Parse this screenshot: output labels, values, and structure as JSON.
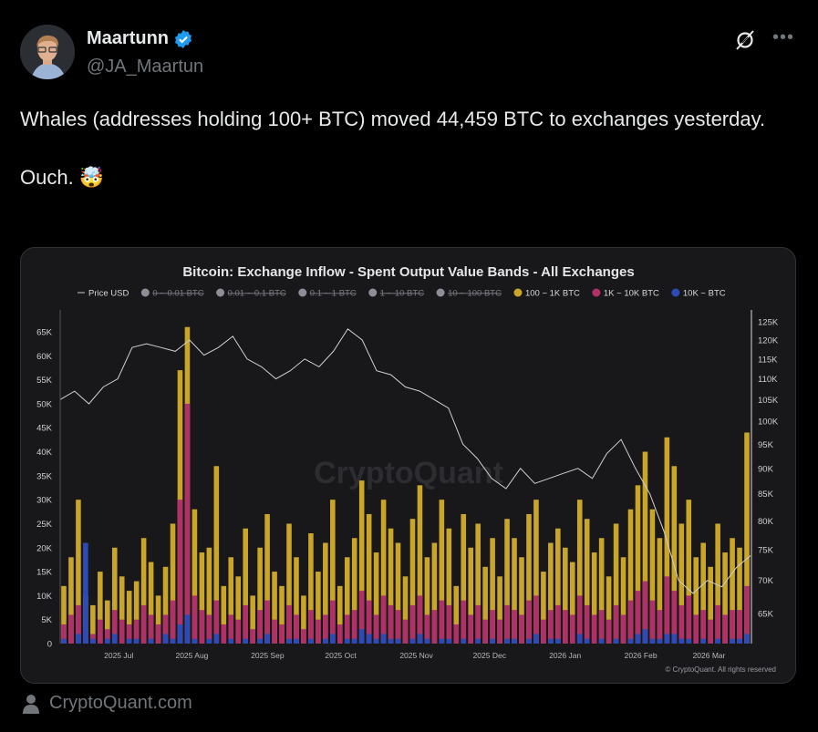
{
  "author": {
    "name": "Maartunn",
    "handle": "@JA_Maartun",
    "verified": true
  },
  "tweet": {
    "line1": "Whales (addresses holding 100+ BTC) moved 44,459 BTC to exchanges yesterday.",
    "line2": "Ouch. 🤯"
  },
  "actions": {
    "grok_icon": "grok-icon",
    "more_icon": "more-icon"
  },
  "source": {
    "label": "CryptoQuant.com"
  },
  "colors": {
    "yellow": "#c9a52a",
    "pink": "#b03068",
    "blue": "#2c4bb8",
    "price": "#d0d0d0",
    "disabled": "#8e8e98"
  },
  "chart_data": {
    "type": "bar",
    "title": "Bitcoin: Exchange Inflow - Spent Output Value Bands - All Exchanges",
    "watermark": "CryptoQuant",
    "copyright": "© CryptoQuant. All rights reserved",
    "legend": [
      {
        "label": "Price USD",
        "kind": "line",
        "disabled": false
      },
      {
        "label": "0 ~ 0.01 BTC",
        "kind": "dot",
        "disabled": true
      },
      {
        "label": "0.01 ~ 0.1 BTC",
        "kind": "dot",
        "disabled": true
      },
      {
        "label": "0.1 ~ 1 BTC",
        "kind": "dot",
        "disabled": true
      },
      {
        "label": "1 ~ 10 BTC",
        "kind": "dot",
        "disabled": true
      },
      {
        "label": "10 ~ 100 BTC",
        "kind": "dot",
        "disabled": true
      },
      {
        "label": "100 ~ 1K BTC",
        "kind": "dot",
        "disabled": false,
        "color": "#c9a52a"
      },
      {
        "label": "1K ~ 10K BTC",
        "kind": "dot",
        "disabled": false,
        "color": "#b03068"
      },
      {
        "label": "10K ~ BTC",
        "kind": "dot",
        "disabled": false,
        "color": "#2c4bb8"
      }
    ],
    "days_total": 283,
    "x_ticks": [
      {
        "label": "2025 Jul",
        "day": 24
      },
      {
        "label": "2025 Aug",
        "day": 54
      },
      {
        "label": "2025 Sep",
        "day": 85
      },
      {
        "label": "2025 Oct",
        "day": 115
      },
      {
        "label": "2025 Nov",
        "day": 146
      },
      {
        "label": "2025 Dec",
        "day": 176
      },
      {
        "label": "2026 Jan",
        "day": 207
      },
      {
        "label": "2026 Feb",
        "day": 238
      },
      {
        "label": "2026 Mar",
        "day": 266
      }
    ],
    "y_left": {
      "min": 0,
      "max": 65000,
      "ticks": [
        "0",
        "5K",
        "10K",
        "15K",
        "20K",
        "25K",
        "30K",
        "35K",
        "40K",
        "45K",
        "50K",
        "55K",
        "60K",
        "65K"
      ]
    },
    "y_right": {
      "scale": "log",
      "min": 61000,
      "max": 128000,
      "ticks": [
        65,
        70,
        75,
        80,
        85,
        90,
        95,
        100,
        105,
        110,
        115,
        120,
        125
      ]
    },
    "series": [
      {
        "name": "100 ~ 1K BTC",
        "unit": "K BTC",
        "values": [
          12,
          18,
          30,
          10,
          8,
          15,
          9,
          20,
          14,
          11,
          13,
          22,
          17,
          10,
          16,
          25,
          57,
          66,
          28,
          19,
          20,
          37,
          12,
          18,
          14,
          24,
          10,
          20,
          27,
          15,
          12,
          25,
          18,
          10,
          23,
          15,
          21,
          30,
          12,
          18,
          22,
          34,
          27,
          19,
          30,
          24,
          21,
          14,
          26,
          33,
          18,
          21,
          30,
          24,
          12,
          27,
          20,
          25,
          16,
          22,
          14,
          26,
          22,
          18,
          27,
          30,
          15,
          21,
          24,
          20,
          17,
          30,
          26,
          19,
          22,
          14,
          25,
          18,
          28,
          33,
          40,
          28,
          22,
          43,
          37,
          25,
          30,
          18,
          21,
          16,
          25,
          19,
          22,
          20,
          44
        ]
      },
      {
        "name": "1K ~ 10K BTC",
        "unit": "K BTC",
        "values": [
          4,
          6,
          8,
          3,
          2,
          5,
          3,
          7,
          5,
          4,
          5,
          8,
          6,
          4,
          6,
          9,
          30,
          50,
          10,
          7,
          6,
          9,
          4,
          6,
          5,
          8,
          3,
          7,
          9,
          5,
          4,
          8,
          6,
          3,
          7,
          5,
          6,
          9,
          4,
          6,
          7,
          11,
          9,
          6,
          10,
          8,
          7,
          5,
          8,
          10,
          6,
          7,
          9,
          8,
          4,
          9,
          6,
          8,
          5,
          7,
          5,
          8,
          7,
          6,
          9,
          10,
          5,
          7,
          8,
          7,
          6,
          10,
          8,
          6,
          7,
          5,
          8,
          6,
          9,
          11,
          13,
          9,
          7,
          14,
          11,
          8,
          10,
          6,
          7,
          5,
          8,
          6,
          7,
          7,
          12
        ]
      },
      {
        "name": "10K ~ BTC",
        "unit": "K BTC",
        "values": [
          1,
          0,
          2,
          21,
          1,
          0,
          1,
          2,
          0,
          1,
          1,
          0,
          1,
          0,
          2,
          1,
          4,
          6,
          1,
          0,
          1,
          2,
          0,
          1,
          0,
          1,
          0,
          1,
          2,
          0,
          0,
          1,
          1,
          0,
          1,
          0,
          1,
          2,
          0,
          1,
          1,
          3,
          2,
          1,
          2,
          1,
          1,
          0,
          1,
          2,
          1,
          0,
          1,
          1,
          0,
          1,
          0,
          1,
          0,
          1,
          0,
          1,
          1,
          0,
          1,
          2,
          0,
          1,
          1,
          0,
          0,
          2,
          1,
          0,
          1,
          0,
          1,
          0,
          1,
          2,
          3,
          1,
          1,
          2,
          2,
          1,
          1,
          0,
          1,
          0,
          1,
          0,
          1,
          1,
          2
        ]
      },
      {
        "name": "Price USD",
        "unit": "K USD",
        "values": [
          105,
          107,
          104,
          108,
          110,
          118,
          119,
          118,
          117,
          120,
          116,
          118,
          121,
          115,
          113,
          110,
          112,
          115,
          113,
          117,
          123,
          120,
          112,
          111,
          108,
          107,
          105,
          103,
          95,
          92,
          88,
          86,
          90,
          87,
          88,
          89,
          90,
          88,
          93,
          96,
          90,
          85,
          78,
          70,
          68,
          70,
          69,
          72,
          74
        ]
      }
    ]
  }
}
